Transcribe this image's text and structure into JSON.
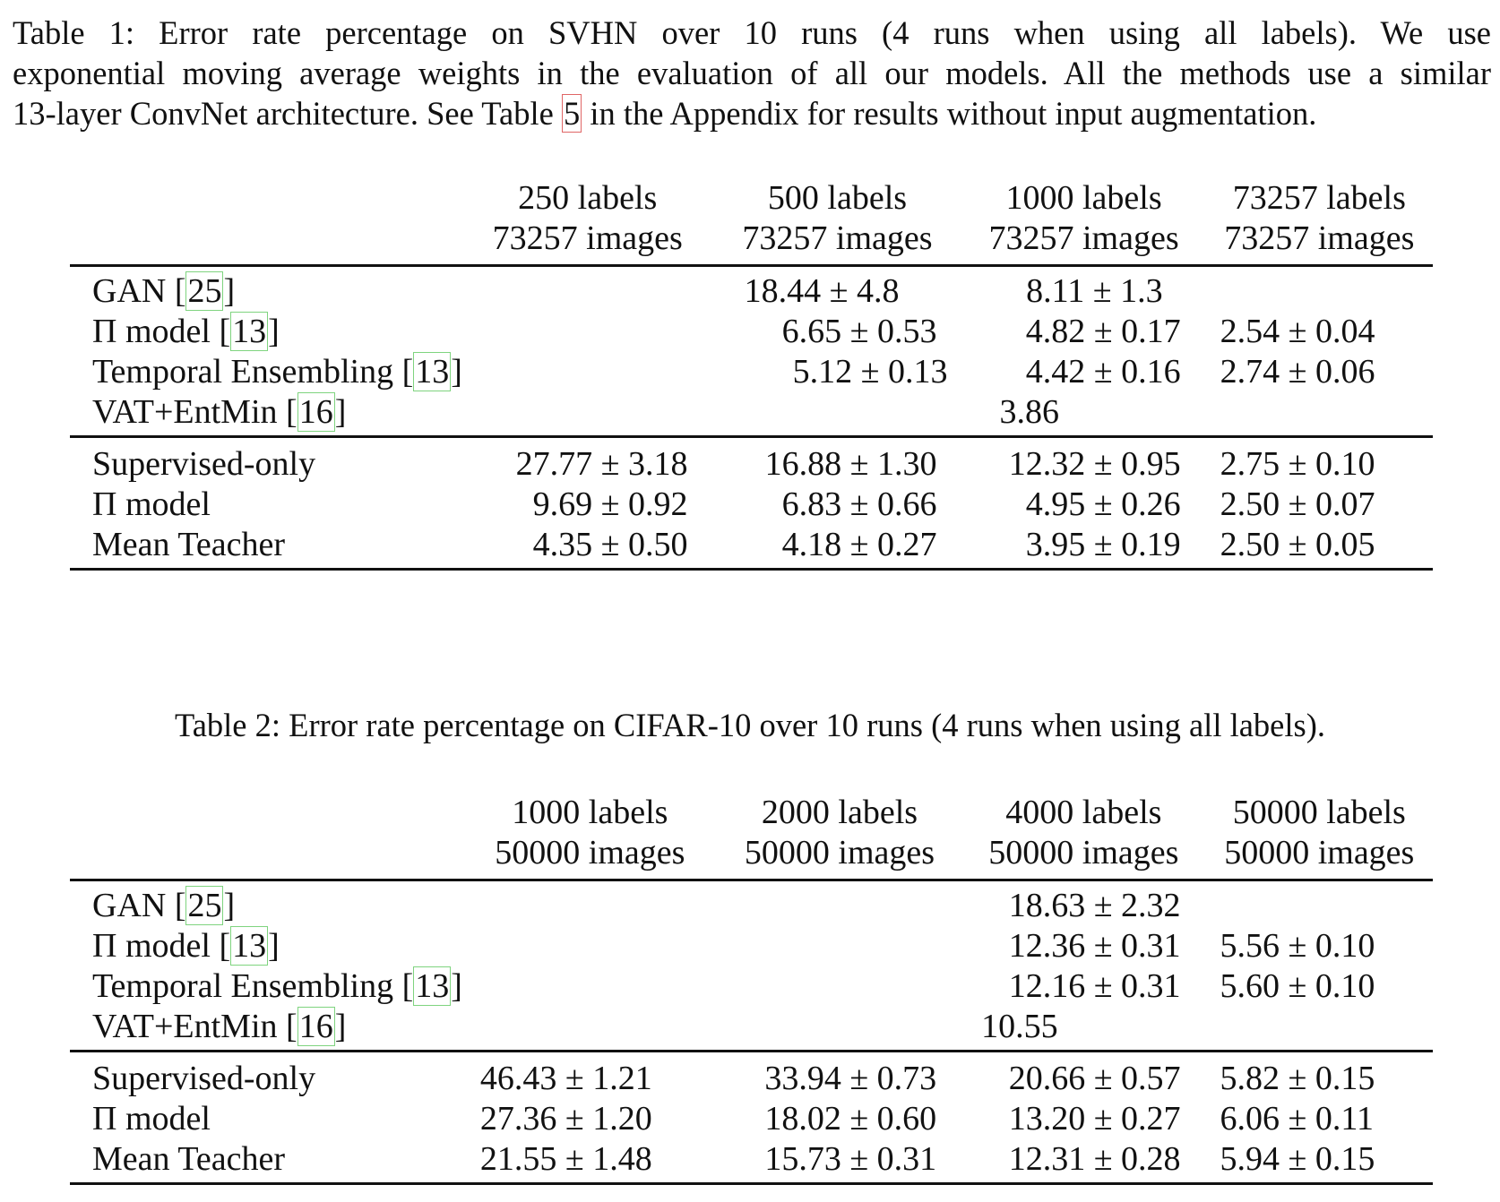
{
  "table1": {
    "caption_lines": [
      "Table 1: Error rate percentage on SVHN over 10 runs (4 runs when using all labels). We use",
      "exponential moving average weights in the evaluation of all our models. All the methods use a similar",
      "13-layer ConvNet architecture. See Table",
      "5",
      "in the Appendix for results without input augmentation."
    ],
    "headers": [
      {
        "labels": "250 labels",
        "images": "73257 images"
      },
      {
        "labels": "500 labels",
        "images": "73257 images"
      },
      {
        "labels": "1000 labels",
        "images": "73257 images"
      },
      {
        "labels": "73257 labels",
        "images": "73257 images"
      }
    ],
    "prior_rows": [
      {
        "method": "GAN",
        "cite": "25",
        "values": [
          "",
          "18.44 ± 4.8",
          "8.11 ± 1.3",
          ""
        ]
      },
      {
        "method": "Π model",
        "cite": "13",
        "values": [
          "",
          "6.65 ± 0.53",
          "4.82 ± 0.17",
          "2.54 ± 0.04"
        ]
      },
      {
        "method": "Temporal Ensembling",
        "cite": "13",
        "values": [
          "",
          "5.12 ± 0.13",
          "4.42 ± 0.16",
          "2.74 ± 0.06"
        ]
      },
      {
        "method": "VAT+EntMin",
        "cite": "16",
        "values": [
          "",
          "",
          "3.86",
          ""
        ]
      }
    ],
    "our_rows": [
      {
        "method": "Supervised-only",
        "values": [
          "27.77 ± 3.18",
          "16.88 ± 1.30",
          "12.32 ± 0.95",
          "2.75 ± 0.10"
        ]
      },
      {
        "method": "Π model",
        "values": [
          "9.69 ± 0.92",
          "6.83 ± 0.66",
          "4.95 ± 0.26",
          "2.50 ± 0.07"
        ]
      },
      {
        "method": "Mean Teacher",
        "values": [
          "4.35 ± 0.50",
          "4.18 ± 0.27",
          "3.95 ± 0.19",
          "2.50 ± 0.05"
        ]
      }
    ]
  },
  "table2": {
    "caption": "Table 2: Error rate percentage on CIFAR-10 over 10 runs (4 runs when using all labels).",
    "headers": [
      {
        "labels": "1000 labels",
        "images": "50000 images"
      },
      {
        "labels": "2000 labels",
        "images": "50000 images"
      },
      {
        "labels": "4000 labels",
        "images": "50000 images"
      },
      {
        "labels": "50000 labels",
        "images": "50000 images"
      }
    ],
    "prior_rows": [
      {
        "method": "GAN",
        "cite": "25",
        "values": [
          "",
          "",
          "18.63 ± 2.32",
          ""
        ]
      },
      {
        "method": "Π model",
        "cite": "13",
        "values": [
          "",
          "",
          "12.36 ± 0.31",
          "5.56 ± 0.10"
        ]
      },
      {
        "method": "Temporal Ensembling",
        "cite": "13",
        "values": [
          "",
          "",
          "12.16 ± 0.31",
          "5.60 ± 0.10"
        ]
      },
      {
        "method": "VAT+EntMin",
        "cite": "16",
        "values": [
          "",
          "",
          "10.55",
          ""
        ]
      }
    ],
    "our_rows": [
      {
        "method": "Supervised-only",
        "values": [
          "46.43 ± 1.21",
          "33.94 ± 0.73",
          "20.66 ± 0.57",
          "5.82 ± 0.15"
        ]
      },
      {
        "method": "Π model",
        "values": [
          "27.36 ± 1.20",
          "18.02 ± 0.60",
          "13.20 ± 0.27",
          "6.06 ± 0.11"
        ]
      },
      {
        "method": "Mean Teacher",
        "values": [
          "21.55 ± 1.48",
          "15.73 ± 0.31",
          "12.31 ± 0.28",
          "5.94 ± 0.15"
        ]
      }
    ]
  }
}
